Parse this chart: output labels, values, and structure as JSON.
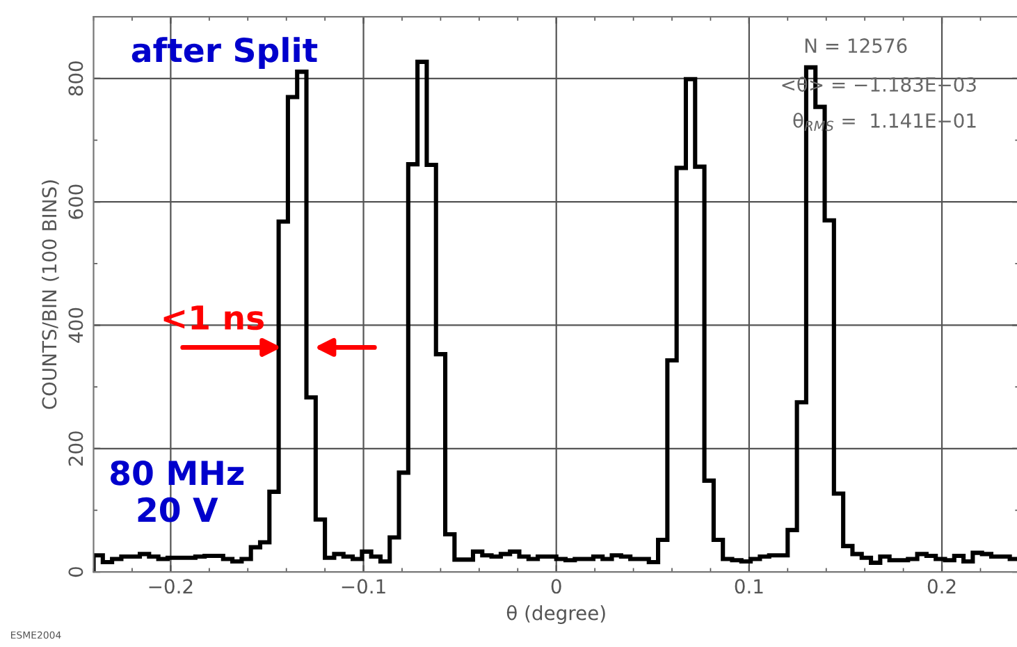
{
  "chart_data": {
    "type": "histogram",
    "xlabel": "θ (degree)",
    "ylabel": "COUNTS/BIN (100 BINS)",
    "bins": [
      -0.24,
      -0.2352,
      -0.2304,
      -0.2256,
      -0.2208,
      -0.216,
      -0.2112,
      -0.2064,
      -0.2016,
      -0.1968,
      -0.192,
      -0.1872,
      -0.1824,
      -0.1776,
      -0.1728,
      -0.168,
      -0.1632,
      -0.1584,
      -0.1536,
      -0.1488,
      -0.144,
      -0.1392,
      -0.1344,
      -0.1296,
      -0.1248,
      -0.12,
      -0.1152,
      -0.1104,
      -0.1056,
      -0.1008,
      -0.096,
      -0.0912,
      -0.0864,
      -0.0816,
      -0.0768,
      -0.072,
      -0.0672,
      -0.0624,
      -0.0576,
      -0.0528,
      -0.048,
      -0.0432,
      -0.0384,
      -0.0336,
      -0.0288,
      -0.024,
      -0.0192,
      -0.0144,
      -0.0096,
      -0.0048,
      0,
      0.0048,
      0.0096,
      0.0144,
      0.0192,
      0.024,
      0.0288,
      0.0336,
      0.0384,
      0.0432,
      0.048,
      0.0528,
      0.0576,
      0.0624,
      0.0672,
      0.072,
      0.0768,
      0.0816,
      0.0864,
      0.0912,
      0.096,
      0.1008,
      0.1056,
      0.1104,
      0.1152,
      0.12,
      0.1248,
      0.1296,
      0.1344,
      0.1392,
      0.144,
      0.1488,
      0.1536,
      0.1584,
      0.1632,
      0.168,
      0.1728,
      0.1776,
      0.1824,
      0.1872,
      0.192,
      0.1968,
      0.2016,
      0.2064,
      0.2112,
      0.216,
      0.2208,
      0.2256,
      0.2304,
      0.2352,
      0.24
    ],
    "values": [
      27,
      16,
      21,
      25,
      25,
      29,
      25,
      21,
      23,
      23,
      23,
      25,
      26,
      26,
      21,
      17,
      21,
      40,
      48,
      130,
      568,
      770,
      811,
      283,
      85,
      23,
      29,
      25,
      21,
      33,
      25,
      17,
      56,
      161,
      661,
      827,
      660,
      353,
      61,
      20,
      20,
      33,
      27,
      25,
      29,
      33,
      25,
      21,
      25,
      25,
      21,
      19,
      21,
      21,
      25,
      21,
      27,
      25,
      21,
      21,
      16,
      52,
      343,
      655,
      799,
      657,
      148,
      52,
      21,
      19,
      17,
      21,
      25,
      27,
      27,
      68,
      275,
      818,
      754,
      570,
      127,
      42,
      29,
      23,
      15,
      25,
      19,
      19,
      21,
      29,
      26,
      21,
      19,
      26,
      17,
      31,
      29,
      25,
      25,
      21
    ],
    "color": "#000000",
    "xlim": [
      -0.24,
      0.24
    ],
    "ylim": [
      0,
      900
    ],
    "xticks": [
      {
        "value": -0.2,
        "label": "−0.2"
      },
      {
        "value": -0.1,
        "label": "−0.1"
      },
      0,
      0.1,
      0.2
    ],
    "yticks": [
      0,
      200,
      400,
      600,
      800
    ],
    "grid": true,
    "annotations": [
      "after Split",
      {
        "text": "<1 ns",
        "x": -0.134,
        "y": 364
      },
      "80 MHz\n20 V",
      "N = 12576",
      "<θ> = −1.183E−03",
      "θ$_{RMS}$ =  1.141E−01",
      "ESME2004"
    ]
  }
}
